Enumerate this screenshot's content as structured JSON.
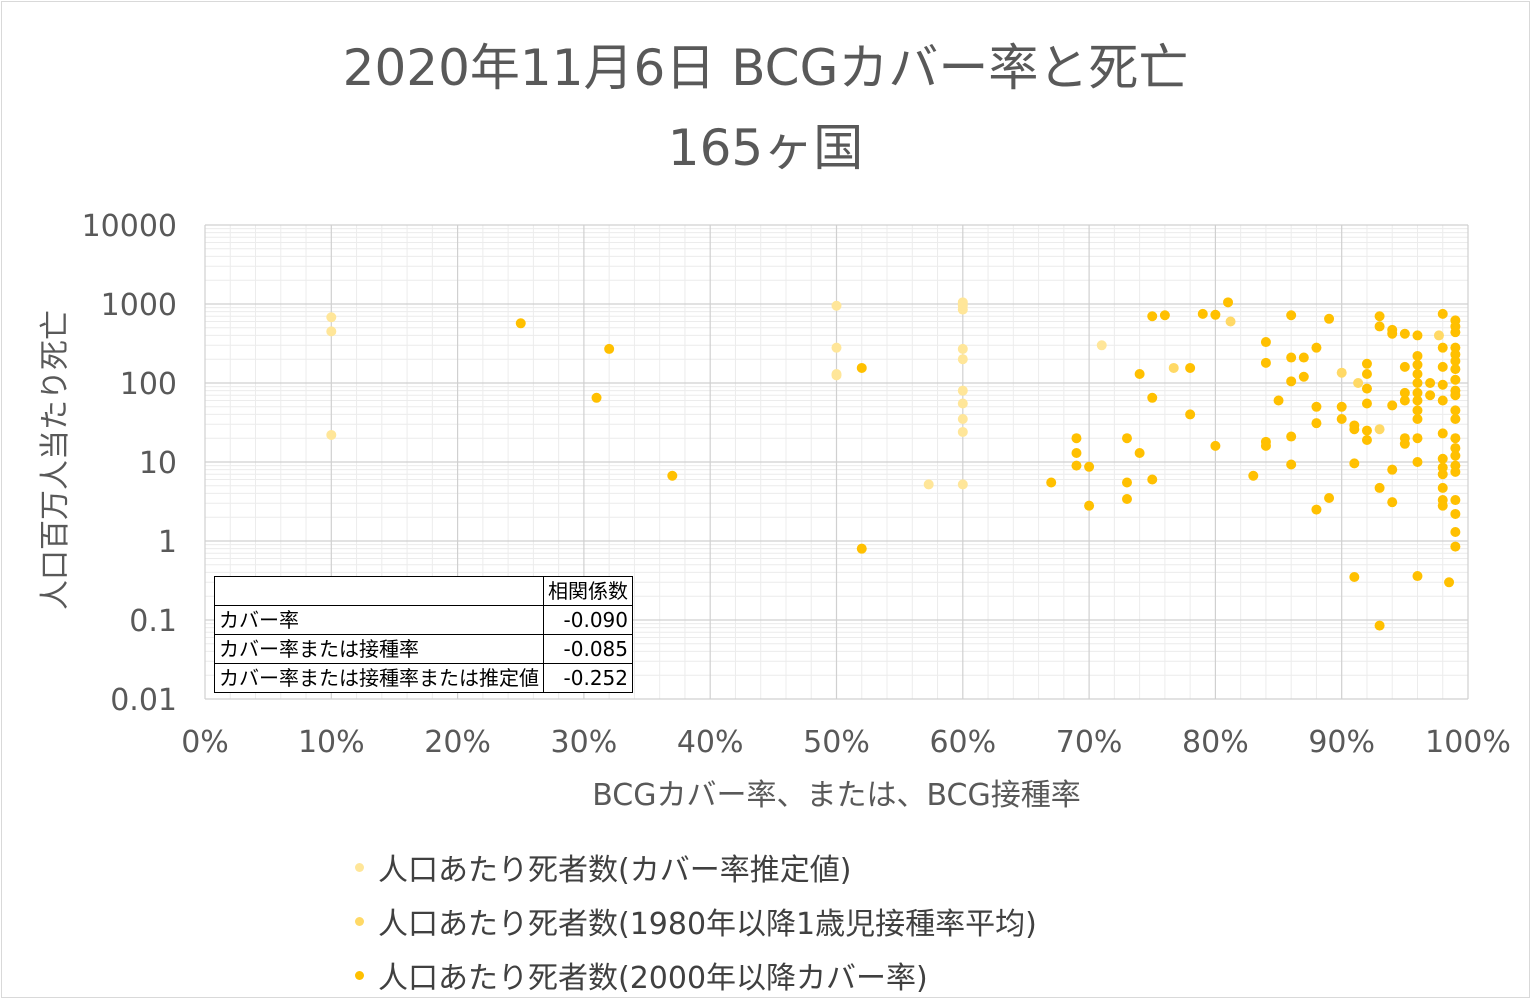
{
  "title": {
    "line1": "2020年11月6日 BCGカバー率と死亡",
    "line2": "165ヶ国"
  },
  "axes": {
    "y_title": "人口百万人当たり死亡",
    "x_title": "BCGカバー率、または、BCG接種率",
    "y_ticks": [
      "10000",
      "1000",
      "100",
      "10",
      "1",
      "0.1",
      "0.01"
    ],
    "x_ticks": [
      "0%",
      "10%",
      "20%",
      "30%",
      "40%",
      "50%",
      "60%",
      "70%",
      "80%",
      "90%",
      "100%"
    ]
  },
  "correlation_table": {
    "header": "相関係数",
    "rows": [
      {
        "label": "カバー率",
        "value": "-0.090"
      },
      {
        "label": "カバー率または接種率",
        "value": "-0.085"
      },
      {
        "label": "カバー率または接種率または推定値",
        "value": "-0.252"
      }
    ]
  },
  "legend": [
    {
      "label": "人口あたり死者数(カバー率推定値)",
      "color": "#ffe699"
    },
    {
      "label": "人口あたり死者数(1980年以降1歳児接種率平均)",
      "color": "#ffd966"
    },
    {
      "label": "人口あたり死者数(2000年以降カバー率)",
      "color": "#ffc000"
    }
  ],
  "chart_data": {
    "type": "scatter",
    "title": "2020年11月6日 BCGカバー率と死亡 165ヶ国",
    "xlabel": "BCGカバー率、または、BCG接種率",
    "ylabel": "人口百万人当たり死亡",
    "xlim": [
      0,
      100
    ],
    "ylim": [
      0.01,
      10000
    ],
    "yscale": "log",
    "grid": true,
    "legend_position": "bottom",
    "series": [
      {
        "name": "人口あたり死者数(カバー率推定値)",
        "color": "#ffe699",
        "points": [
          [
            10,
            680
          ],
          [
            10,
            450
          ],
          [
            10,
            22
          ],
          [
            50,
            950
          ],
          [
            50,
            280
          ],
          [
            50,
            130
          ],
          [
            50,
            125
          ],
          [
            57.3,
            5.2
          ],
          [
            60,
            1050
          ],
          [
            60,
            950
          ],
          [
            60,
            850
          ],
          [
            60,
            270
          ],
          [
            60,
            200
          ],
          [
            60,
            80
          ],
          [
            60,
            55
          ],
          [
            60,
            35
          ],
          [
            60,
            24
          ],
          [
            60,
            5.2
          ],
          [
            71,
            300
          ]
        ]
      },
      {
        "name": "人口あたり死者数(1980年以降1歳児接種率平均)",
        "color": "#ffd966",
        "points": [
          [
            76.7,
            155
          ],
          [
            81.2,
            600
          ],
          [
            90,
            135
          ],
          [
            91.3,
            100
          ],
          [
            93,
            26
          ],
          [
            97.7,
            400
          ]
        ]
      },
      {
        "name": "人口あたり死者数(2000年以降カバー率)",
        "color": "#ffc000",
        "points": [
          [
            25,
            570
          ],
          [
            31,
            65
          ],
          [
            32,
            270
          ],
          [
            37,
            6.7
          ],
          [
            52,
            155
          ],
          [
            52,
            0.8
          ],
          [
            67,
            5.5
          ],
          [
            69,
            20
          ],
          [
            69,
            13
          ],
          [
            69,
            9
          ],
          [
            70,
            8.7
          ],
          [
            70,
            2.8
          ],
          [
            73,
            20
          ],
          [
            73,
            5.5
          ],
          [
            73,
            3.4
          ],
          [
            74,
            130
          ],
          [
            74,
            13
          ],
          [
            75,
            700
          ],
          [
            75,
            65
          ],
          [
            75,
            6
          ],
          [
            76,
            720
          ],
          [
            78,
            155
          ],
          [
            78,
            40
          ],
          [
            79,
            750
          ],
          [
            80,
            730
          ],
          [
            80,
            16
          ],
          [
            81,
            1050
          ],
          [
            83,
            6.7
          ],
          [
            84,
            330
          ],
          [
            84,
            180
          ],
          [
            84,
            18
          ],
          [
            84,
            16
          ],
          [
            85,
            60
          ],
          [
            86,
            720
          ],
          [
            86,
            210
          ],
          [
            86,
            105
          ],
          [
            86,
            21
          ],
          [
            86,
            9.3
          ],
          [
            87,
            210
          ],
          [
            87,
            120
          ],
          [
            88,
            280
          ],
          [
            88,
            50
          ],
          [
            88,
            31
          ],
          [
            88,
            2.5
          ],
          [
            89,
            650
          ],
          [
            89,
            3.5
          ],
          [
            90,
            50
          ],
          [
            90,
            35
          ],
          [
            91,
            29
          ],
          [
            91,
            26
          ],
          [
            91,
            9.6
          ],
          [
            91,
            0.35
          ],
          [
            92,
            175
          ],
          [
            92,
            130
          ],
          [
            92,
            85
          ],
          [
            92,
            55
          ],
          [
            92,
            25
          ],
          [
            92,
            19
          ],
          [
            93,
            700
          ],
          [
            93,
            520
          ],
          [
            93,
            4.7
          ],
          [
            93,
            0.085
          ],
          [
            94,
            470
          ],
          [
            94,
            420
          ],
          [
            94,
            52
          ],
          [
            94,
            8
          ],
          [
            94,
            3.1
          ],
          [
            95,
            420
          ],
          [
            95,
            160
          ],
          [
            95,
            75
          ],
          [
            95,
            60
          ],
          [
            95,
            20
          ],
          [
            95,
            17
          ],
          [
            96,
            400
          ],
          [
            96,
            220
          ],
          [
            96,
            170
          ],
          [
            96,
            130
          ],
          [
            96,
            100
          ],
          [
            96,
            75
          ],
          [
            96,
            60
          ],
          [
            96,
            45
          ],
          [
            96,
            35
          ],
          [
            96,
            20
          ],
          [
            96,
            10
          ],
          [
            96,
            0.36
          ],
          [
            97,
            100
          ],
          [
            97,
            70
          ],
          [
            98,
            750
          ],
          [
            98,
            280
          ],
          [
            98,
            160
          ],
          [
            98,
            95
          ],
          [
            98,
            60
          ],
          [
            98,
            23
          ],
          [
            98,
            11
          ],
          [
            98,
            8.5
          ],
          [
            98,
            7
          ],
          [
            98,
            4.7
          ],
          [
            98,
            3.3
          ],
          [
            98,
            2.8
          ],
          [
            98.5,
            0.3
          ],
          [
            99,
            620
          ],
          [
            99,
            520
          ],
          [
            99,
            440
          ],
          [
            99,
            280
          ],
          [
            99,
            230
          ],
          [
            99,
            190
          ],
          [
            99,
            150
          ],
          [
            99,
            110
          ],
          [
            99,
            80
          ],
          [
            99,
            70
          ],
          [
            99,
            45
          ],
          [
            99,
            35
          ],
          [
            99,
            20
          ],
          [
            99,
            15
          ],
          [
            99,
            12
          ],
          [
            99,
            9
          ],
          [
            99,
            7.5
          ],
          [
            99,
            3.3
          ],
          [
            99,
            2.2
          ],
          [
            99,
            1.3
          ],
          [
            99,
            0.85
          ]
        ]
      }
    ]
  }
}
